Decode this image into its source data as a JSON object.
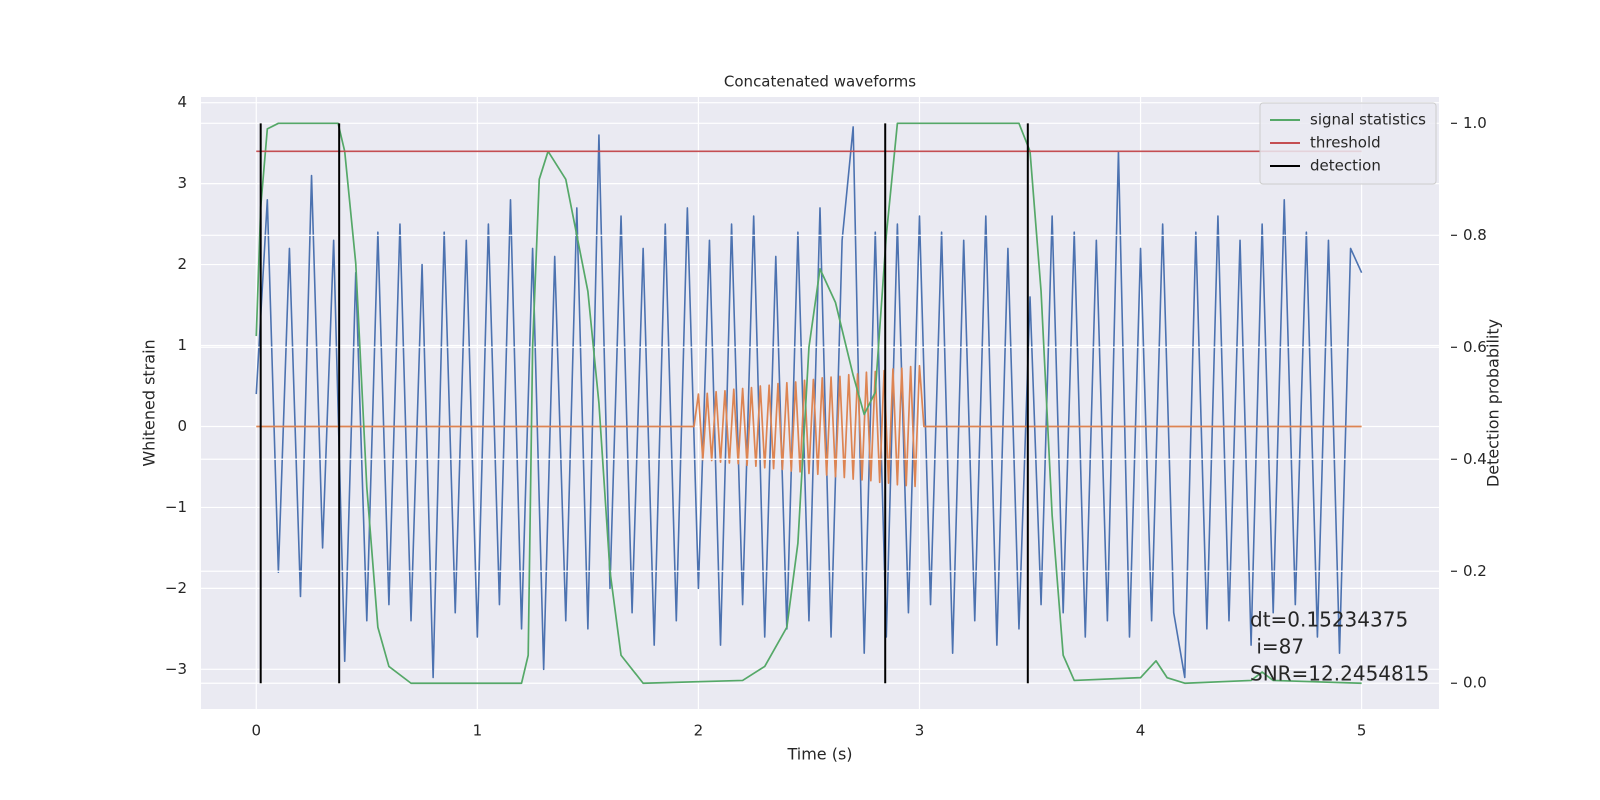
{
  "chart_data": {
    "type": "line",
    "title": "Concatenated waveforms",
    "xlabel": "Time (s)",
    "ylabel": "Whitened strain",
    "y2label": "Detection probability",
    "xlim": [
      -0.25,
      5.35
    ],
    "ylim": [
      -3.49,
      4.07
    ],
    "y2lim": [
      -0.046,
      1.047
    ],
    "xticks": [
      0,
      1,
      2,
      3,
      4,
      5
    ],
    "yticks": [
      {
        "value": -3,
        "label": "−3"
      },
      {
        "value": -2,
        "label": "−2"
      },
      {
        "value": -1,
        "label": "−1"
      },
      0,
      1,
      2,
      3,
      4
    ],
    "y2ticks": [
      {
        "value": 0,
        "label": "0.0"
      },
      {
        "value": 0.2,
        "label": "0.2"
      },
      {
        "value": 0.4,
        "label": "0.4"
      },
      {
        "value": 0.6,
        "label": "0.6"
      },
      {
        "value": 0.8,
        "label": "0.8"
      },
      {
        "value": 1.0,
        "label": "1.0"
      }
    ],
    "grid": true,
    "legend": "upper right",
    "series": [
      {
        "color": "#4c72b0",
        "x": [
          0,
          0.05,
          0.1,
          0.15,
          0.2,
          0.25,
          0.3,
          0.35,
          0.4,
          0.45,
          0.5,
          0.55,
          0.6,
          0.65,
          0.7,
          0.75,
          0.8,
          0.85,
          0.9,
          0.95,
          1,
          1.05,
          1.1,
          1.15,
          1.2,
          1.25,
          1.3,
          1.35,
          1.4,
          1.45,
          1.5,
          1.55,
          1.6,
          1.65,
          1.7,
          1.75,
          1.8,
          1.85,
          1.9,
          1.95,
          2,
          2.05,
          2.1,
          2.15,
          2.2,
          2.25,
          2.3,
          2.35,
          2.4,
          2.45,
          2.5,
          2.55,
          2.6,
          2.65,
          2.7,
          2.75,
          2.8,
          2.85,
          2.9,
          2.95,
          3,
          3.05,
          3.1,
          3.15,
          3.2,
          3.25,
          3.3,
          3.35,
          3.4,
          3.45,
          3.5,
          3.55,
          3.6,
          3.65,
          3.7,
          3.75,
          3.8,
          3.85,
          3.9,
          3.95,
          4,
          4.05,
          4.1,
          4.15,
          4.2,
          4.25,
          4.3,
          4.35,
          4.4,
          4.45,
          4.5,
          4.55,
          4.6,
          4.65,
          4.7,
          4.75,
          4.8,
          4.85,
          4.9,
          4.95,
          5
        ],
        "values": [
          0.4,
          2.8,
          -1.8,
          2.2,
          -2.1,
          3.1,
          -1.5,
          2.3,
          -2.9,
          1.9,
          -2.4,
          2.4,
          -2.2,
          2.5,
          -2.4,
          2.0,
          -3.1,
          2.4,
          -2.3,
          2.3,
          -2.6,
          2.5,
          -2.2,
          2.8,
          -2.5,
          2.2,
          -3.0,
          2.1,
          -2.4,
          2.7,
          -2.5,
          3.6,
          -2.0,
          2.6,
          -2.3,
          2.2,
          -2.7,
          2.5,
          -2.4,
          2.7,
          -2.0,
          2.3,
          -2.7,
          2.5,
          -2.2,
          2.6,
          -2.6,
          2.1,
          -2.5,
          2.4,
          -2.4,
          2.7,
          -2.6,
          2.3,
          3.7,
          -2.8,
          2.4,
          -2.6,
          2.5,
          -2.3,
          2.6,
          -2.2,
          2.4,
          -2.8,
          2.3,
          -2.4,
          2.6,
          -2.7,
          2.2,
          -2.5,
          1.6,
          -2.2,
          2.6,
          -2.3,
          2.4,
          -2.6,
          2.3,
          -2.4,
          3.4,
          -2.6,
          2.2,
          -2.4,
          2.5,
          -2.3,
          -3.1,
          2.4,
          -2.5,
          2.6,
          -2.4,
          2.3,
          -2.7,
          2.5,
          -2.3,
          2.8,
          -2.2,
          2.4,
          -2.6,
          2.3,
          -2.8,
          2.2,
          1.9
        ]
      },
      {
        "color": "#dd8452",
        "x": [
          0,
          1.98,
          2,
          2.02,
          2.04,
          2.06,
          2.08,
          2.1,
          2.12,
          2.14,
          2.16,
          2.18,
          2.2,
          2.22,
          2.24,
          2.26,
          2.28,
          2.3,
          2.32,
          2.34,
          2.36,
          2.38,
          2.4,
          2.42,
          2.44,
          2.46,
          2.48,
          2.5,
          2.52,
          2.54,
          2.56,
          2.58,
          2.6,
          2.62,
          2.64,
          2.66,
          2.68,
          2.7,
          2.72,
          2.74,
          2.76,
          2.78,
          2.8,
          2.82,
          2.84,
          2.86,
          2.88,
          2.9,
          2.92,
          2.94,
          2.96,
          2.98,
          3,
          3.02,
          5
        ],
        "values": [
          0,
          0,
          0.4,
          -0.41,
          0.41,
          -0.42,
          0.43,
          -0.44,
          0.44,
          -0.45,
          0.46,
          -0.46,
          0.47,
          -0.48,
          0.48,
          -0.49,
          0.5,
          -0.51,
          0.51,
          -0.52,
          0.53,
          -0.53,
          0.54,
          -0.55,
          0.55,
          -0.56,
          0.57,
          -0.58,
          0.58,
          -0.59,
          0.6,
          -0.6,
          0.61,
          -0.62,
          0.62,
          -0.63,
          0.64,
          -0.65,
          0.65,
          -0.66,
          0.67,
          -0.67,
          0.68,
          -0.69,
          0.69,
          -0.7,
          0.71,
          -0.72,
          0.72,
          -0.73,
          0.74,
          -0.74,
          0.75,
          0,
          0
        ]
      },
      {
        "name": "signal statistics",
        "color": "#55a868",
        "axis": "y2",
        "x": [
          0,
          0.02,
          0.05,
          0.1,
          0.37,
          0.4,
          0.45,
          0.5,
          0.55,
          0.6,
          0.7,
          1.2,
          1.23,
          1.25,
          1.28,
          1.32,
          1.4,
          1.5,
          1.55,
          1.6,
          1.65,
          1.75,
          2.2,
          2.3,
          2.4,
          2.45,
          2.5,
          2.55,
          2.62,
          2.7,
          2.75,
          2.8,
          2.85,
          2.9,
          3,
          3.45,
          3.5,
          3.55,
          3.6,
          3.65,
          3.7,
          4,
          4.07,
          4.12,
          4.2,
          4.5,
          4.55,
          4.6,
          5
        ],
        "values": [
          0.62,
          0.85,
          0.99,
          1.0,
          1.0,
          0.95,
          0.75,
          0.35,
          0.1,
          0.03,
          0.0,
          0.0,
          0.05,
          0.6,
          0.9,
          0.95,
          0.9,
          0.7,
          0.5,
          0.2,
          0.05,
          0.0,
          0.005,
          0.03,
          0.1,
          0.25,
          0.6,
          0.74,
          0.68,
          0.55,
          0.48,
          0.52,
          0.8,
          1.0,
          1.0,
          1.0,
          0.95,
          0.7,
          0.3,
          0.05,
          0.005,
          0.01,
          0.04,
          0.01,
          0.0,
          0.005,
          0.02,
          0.005,
          0.0
        ]
      },
      {
        "name": "threshold",
        "color": "#c44e52",
        "axis": "y2",
        "x": [
          0,
          5
        ],
        "values": [
          0.95,
          0.95
        ]
      },
      {
        "name": "detection",
        "color": "#000000",
        "axis": "y2",
        "kind": "vlines",
        "x": [
          0.02,
          0.375,
          2.845,
          3.49
        ]
      }
    ],
    "annotation": [
      "dt=0.15234375",
      " i=87",
      "SNR=12.2454815"
    ]
  }
}
